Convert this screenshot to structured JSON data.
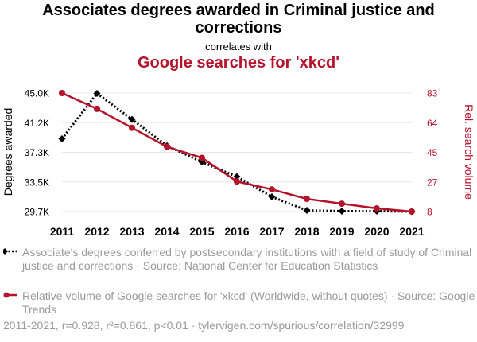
{
  "header": {
    "title": "Associates degrees awarded in Criminal justice and corrections",
    "subtitle": "correlates with",
    "title2": "Google searches for 'xkcd'"
  },
  "chart_data": {
    "type": "line",
    "x": [
      "2011",
      "2012",
      "2013",
      "2014",
      "2015",
      "2016",
      "2017",
      "2018",
      "2019",
      "2020",
      "2021"
    ],
    "series": [
      {
        "name": "Associate's degrees conferred by postsecondary institutions with a field of study of Criminal justice and corrections · Source: National Center for Education Statistics",
        "axis": "left",
        "color": "#000000",
        "style": "dotted",
        "marker": "diamond",
        "values": [
          39100,
          44950,
          41600,
          38200,
          36100,
          34200,
          31600,
          29850,
          29750,
          29750,
          29700
        ]
      },
      {
        "name": "Relative volume of Google searches for 'xkcd' (Worldwide, without quotes) · Source: Google Trends",
        "axis": "right",
        "color": "#b5122b",
        "style": "solid",
        "marker": "circle",
        "values": [
          83,
          73,
          61,
          49,
          42,
          27,
          22,
          16,
          13,
          10,
          8
        ]
      }
    ],
    "ylabel_left": "Degrees awarded",
    "ylabel_right": "Rel. search volume",
    "yticks_left": [
      "45.0K",
      "41.2K",
      "37.3K",
      "33.5K",
      "29.7K"
    ],
    "yticks_right": [
      "83",
      "64",
      "45",
      "27",
      "8"
    ],
    "ylim_left": [
      29700,
      45000
    ],
    "ylim_right": [
      8,
      83
    ],
    "grid": true,
    "legend_position": "bottom"
  },
  "legend": {
    "items": [
      "Associate's degrees conferred by postsecondary institutions with a field of study of Criminal justice and corrections · Source: National Center for Education Statistics",
      "Relative volume of Google searches for 'xkcd' (Worldwide, without quotes) · Source: Google Trends"
    ]
  },
  "footer": "2011-2021, r=0.928, r²=0.861, p<0.01 · tylervigen.com/spurious/correlation/32999",
  "colors": {
    "accent": "#b5122b",
    "text_muted": "#9a9a9a",
    "grid": "#e8e8e8"
  }
}
